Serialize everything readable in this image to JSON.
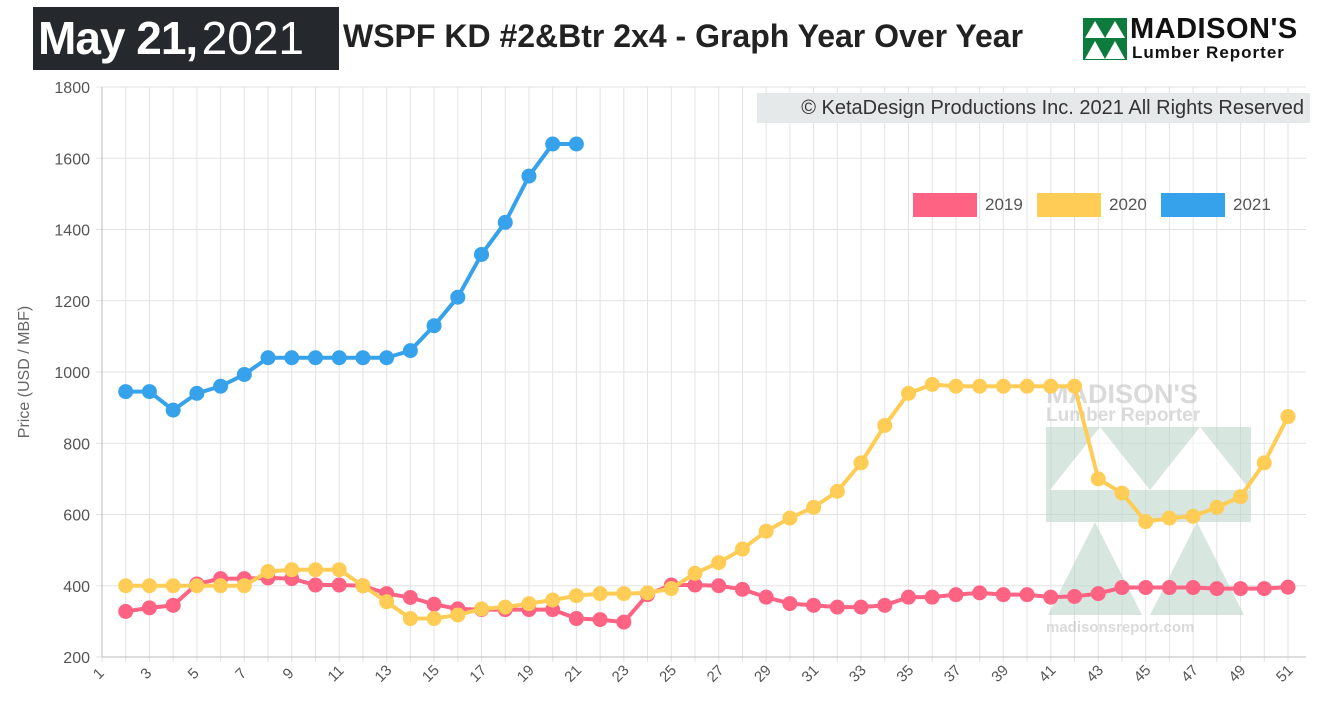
{
  "header": {
    "date_month_day": "May 21,",
    "date_year": "2021",
    "title": "WSPF KD #2&Btr 2x4 - Graph Year Over Year",
    "logo_name": "MADISON'S",
    "logo_sub": "Lumber Reporter"
  },
  "copyright": "© KetaDesign Productions Inc. 2021 All Rights Reserved",
  "watermark": {
    "name": "MADISON'S",
    "sub": "Lumber Reporter",
    "url": "madisonsreport.com"
  },
  "colors": {
    "2019": "#ff6384",
    "2020": "#ffcd56",
    "2021": "#36a2eb",
    "date_box": "#25292d"
  },
  "chart_data": {
    "type": "line",
    "title": "WSPF KD #2&Btr 2x4 - Graph Year Over Year",
    "xlabel": "",
    "ylabel": "Price (USD / MBF)",
    "xlim": [
      1,
      51
    ],
    "ylim": [
      200,
      1800
    ],
    "yticks": [
      200,
      400,
      600,
      800,
      1000,
      1200,
      1400,
      1600,
      1800
    ],
    "xticks": [
      1,
      3,
      5,
      7,
      9,
      11,
      13,
      15,
      17,
      19,
      21,
      23,
      25,
      27,
      29,
      31,
      33,
      35,
      37,
      39,
      41,
      43,
      45,
      47,
      49,
      51
    ],
    "grid": true,
    "legend_position": "top-right",
    "series": [
      {
        "name": "2019",
        "color": "#ff6384",
        "x": [
          2,
          3,
          4,
          5,
          6,
          7,
          8,
          9,
          10,
          11,
          12,
          13,
          14,
          15,
          16,
          17,
          18,
          19,
          20,
          21,
          22,
          23,
          24,
          25,
          26,
          27,
          28,
          29,
          30,
          31,
          32,
          33,
          34,
          35,
          36,
          37,
          38,
          39,
          40,
          41,
          42,
          43,
          44,
          45,
          46,
          47,
          48,
          49,
          50,
          51
        ],
        "values": [
          328,
          338,
          345,
          405,
          420,
          420,
          422,
          420,
          402,
          402,
          400,
          378,
          367,
          348,
          335,
          333,
          333,
          333,
          333,
          308,
          305,
          298,
          375,
          402,
          402,
          400,
          390,
          368,
          350,
          345,
          340,
          340,
          345,
          368,
          368,
          375,
          380,
          375,
          375,
          368,
          370,
          378,
          395,
          395,
          395,
          395,
          392,
          392,
          392,
          396
        ]
      },
      {
        "name": "2020",
        "color": "#ffcd56",
        "x": [
          2,
          3,
          4,
          5,
          6,
          7,
          8,
          9,
          10,
          11,
          12,
          13,
          14,
          15,
          16,
          17,
          18,
          19,
          20,
          21,
          22,
          23,
          24,
          25,
          26,
          27,
          28,
          29,
          30,
          31,
          32,
          33,
          34,
          35,
          36,
          37,
          38,
          39,
          40,
          41,
          42,
          43,
          44,
          45,
          46,
          47,
          48,
          49,
          50,
          51
        ],
        "values": [
          400,
          400,
          400,
          400,
          400,
          400,
          440,
          445,
          445,
          445,
          400,
          355,
          308,
          308,
          318,
          335,
          340,
          350,
          360,
          372,
          378,
          378,
          380,
          392,
          435,
          465,
          503,
          553,
          590,
          620,
          665,
          745,
          850,
          940,
          965,
          960,
          960,
          960,
          960,
          960,
          960,
          700,
          660,
          580,
          590,
          595,
          620,
          650,
          745,
          875
        ]
      },
      {
        "name": "2021",
        "color": "#36a2eb",
        "x": [
          2,
          3,
          4,
          5,
          6,
          7,
          8,
          9,
          10,
          11,
          12,
          13,
          14,
          15,
          16,
          17,
          18,
          19,
          20,
          21
        ],
        "values": [
          945,
          945,
          893,
          940,
          960,
          993,
          1040,
          1040,
          1040,
          1040,
          1040,
          1040,
          1060,
          1130,
          1210,
          1330,
          1420,
          1550,
          1640,
          1640
        ]
      }
    ]
  }
}
